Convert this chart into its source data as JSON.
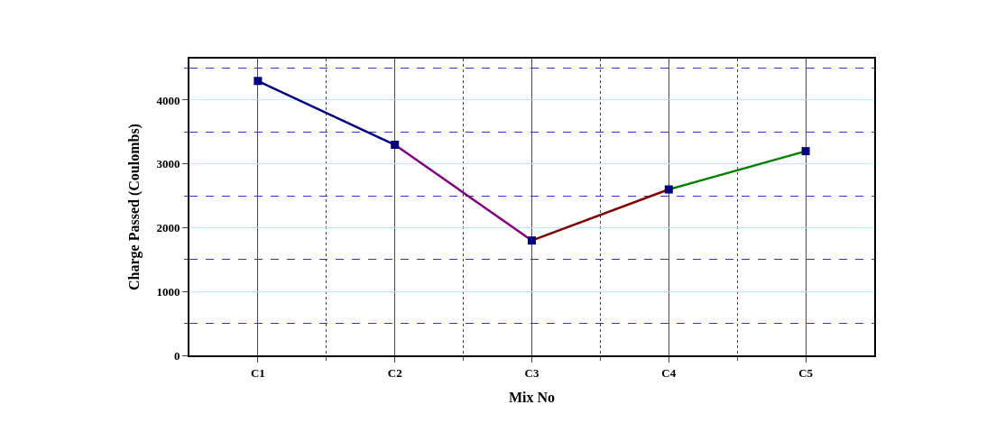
{
  "chart_data": {
    "type": "line",
    "xlabel": "Mix No",
    "ylabel": "Charge Passed (Coulombs)",
    "categories": [
      "C1",
      "C2",
      "C3",
      "C4",
      "C5"
    ],
    "series": [
      {
        "color": "#000080",
        "values": [
          4300,
          3300,
          null,
          null,
          null
        ],
        "marker": "none"
      },
      {
        "color": "#800080",
        "values": [
          null,
          3300,
          1800,
          null,
          null
        ],
        "marker": "none"
      },
      {
        "color": "#800000",
        "values": [
          null,
          null,
          1800,
          2600,
          null
        ],
        "marker": "none"
      },
      {
        "color": "#008000",
        "values": [
          null,
          null,
          null,
          2600,
          3200
        ],
        "marker": "none"
      },
      {
        "type": "scatter",
        "color": "#000080",
        "values": [
          4300,
          3300,
          1800,
          2600,
          3200
        ],
        "marker": "square"
      }
    ],
    "ylim": [
      0,
      4650
    ],
    "yticks": [
      0,
      1000,
      2000,
      3000,
      4000
    ],
    "grid": true
  }
}
